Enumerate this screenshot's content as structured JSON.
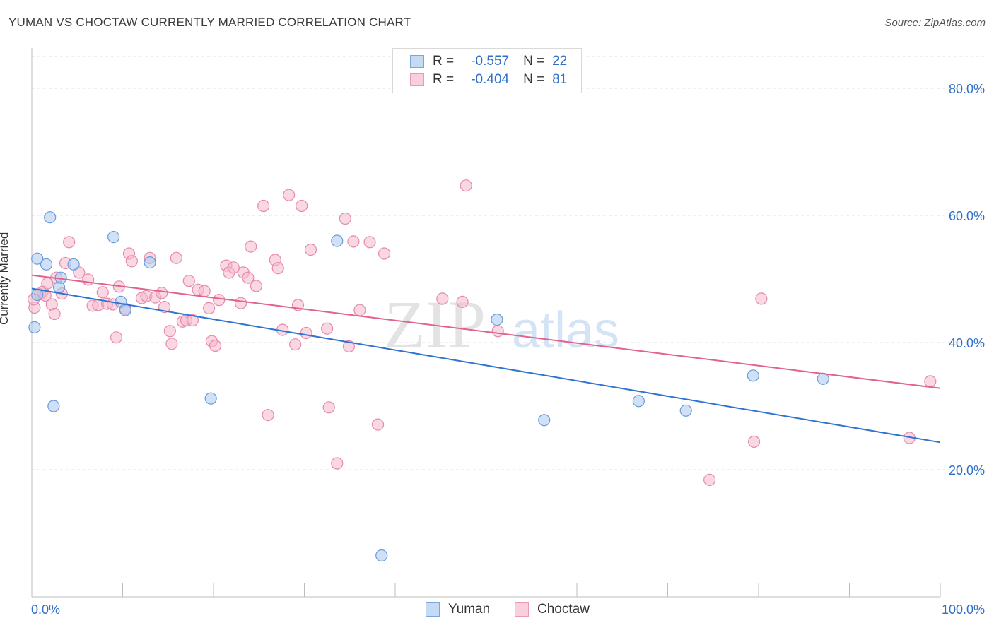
{
  "title": "YUMAN VS CHOCTAW CURRENTLY MARRIED CORRELATION CHART",
  "source": "Source: ZipAtlas.com",
  "watermark": {
    "zip": "ZIP",
    "atlas": "atlas"
  },
  "legend": {
    "rows": [
      {
        "r_label": "R =",
        "r_value": "-0.557",
        "n_label": "N =",
        "n_value": "22"
      },
      {
        "r_label": "R =",
        "r_value": "-0.404",
        "n_label": "N =",
        "n_value": "81"
      }
    ]
  },
  "bottom_legend": {
    "series1": "Yuman",
    "series2": "Choctaw"
  },
  "colors": {
    "yuman_fill": "#aac8f0",
    "yuman_stroke": "#6a9bd8",
    "yuman_line": "#2f74d0",
    "choctaw_fill": "#f6b8cc",
    "choctaw_stroke": "#e58aa8",
    "choctaw_line": "#e0628d",
    "axis_tick_text": "#3070c8",
    "grid": "#e2e2e2"
  },
  "chart_data": {
    "type": "scatter",
    "title": "YUMAN VS CHOCTAW CURRENTLY MARRIED CORRELATION CHART",
    "xlabel": "",
    "ylabel": "Currently Married",
    "xlim": [
      0,
      100
    ],
    "ylim": [
      0,
      85
    ],
    "x_tick_labels": [
      "0.0%",
      "100.0%"
    ],
    "y_ticks": [
      20,
      40,
      60,
      80
    ],
    "y_tick_labels": [
      "20.0%",
      "40.0%",
      "60.0%",
      "80.0%"
    ],
    "grid": true,
    "legend_position": "top-center",
    "series": [
      {
        "name": "Yuman",
        "trend": {
          "x": [
            0,
            100
          ],
          "y": [
            48.5,
            24.3
          ]
        },
        "points": [
          [
            0.3,
            42.4
          ],
          [
            0.6,
            47.5
          ],
          [
            0.6,
            53.2
          ],
          [
            1.6,
            52.3
          ],
          [
            2.0,
            59.7
          ],
          [
            2.4,
            30.0
          ],
          [
            3.0,
            48.7
          ],
          [
            3.2,
            50.2
          ],
          [
            4.6,
            52.3
          ],
          [
            9.0,
            56.6
          ],
          [
            9.8,
            46.4
          ],
          [
            10.3,
            45.1
          ],
          [
            13.0,
            52.6
          ],
          [
            19.7,
            31.2
          ],
          [
            33.6,
            56.0
          ],
          [
            38.5,
            6.5
          ],
          [
            51.2,
            43.6
          ],
          [
            56.4,
            27.8
          ],
          [
            66.8,
            30.8
          ],
          [
            72.0,
            29.3
          ],
          [
            79.4,
            34.8
          ],
          [
            87.1,
            34.3
          ]
        ]
      },
      {
        "name": "Choctaw",
        "trend": {
          "x": [
            0,
            100
          ],
          "y": [
            50.6,
            32.8
          ]
        },
        "points": [
          [
            0.3,
            45.5
          ],
          [
            0.9,
            47.6
          ],
          [
            1.2,
            48.0
          ],
          [
            1.7,
            49.3
          ],
          [
            2.2,
            46.0
          ],
          [
            2.5,
            44.5
          ],
          [
            2.7,
            50.2
          ],
          [
            3.3,
            47.7
          ],
          [
            3.7,
            52.5
          ],
          [
            4.1,
            55.8
          ],
          [
            5.2,
            51.0
          ],
          [
            6.2,
            49.9
          ],
          [
            6.7,
            45.8
          ],
          [
            7.3,
            45.9
          ],
          [
            7.8,
            47.9
          ],
          [
            8.3,
            46.1
          ],
          [
            8.9,
            46.0
          ],
          [
            9.3,
            40.8
          ],
          [
            9.6,
            48.8
          ],
          [
            10.3,
            45.3
          ],
          [
            10.7,
            54.0
          ],
          [
            11.0,
            52.8
          ],
          [
            12.1,
            47.0
          ],
          [
            12.6,
            47.3
          ],
          [
            13.0,
            53.3
          ],
          [
            13.6,
            47.1
          ],
          [
            14.3,
            47.8
          ],
          [
            14.6,
            45.6
          ],
          [
            15.2,
            41.8
          ],
          [
            15.4,
            39.8
          ],
          [
            15.9,
            53.3
          ],
          [
            16.6,
            43.3
          ],
          [
            17.0,
            43.5
          ],
          [
            17.3,
            49.7
          ],
          [
            17.7,
            43.5
          ],
          [
            18.3,
            48.3
          ],
          [
            19.0,
            48.1
          ],
          [
            19.5,
            45.4
          ],
          [
            19.8,
            40.2
          ],
          [
            20.2,
            39.5
          ],
          [
            20.6,
            46.7
          ],
          [
            21.4,
            52.1
          ],
          [
            21.7,
            51.0
          ],
          [
            22.2,
            51.8
          ],
          [
            23.0,
            46.2
          ],
          [
            23.3,
            51.0
          ],
          [
            23.8,
            50.2
          ],
          [
            24.1,
            55.1
          ],
          [
            24.7,
            48.9
          ],
          [
            25.5,
            61.5
          ],
          [
            26.0,
            28.6
          ],
          [
            26.8,
            53.0
          ],
          [
            27.1,
            51.7
          ],
          [
            27.6,
            42.0
          ],
          [
            28.3,
            63.2
          ],
          [
            29.0,
            39.7
          ],
          [
            29.3,
            45.9
          ],
          [
            29.7,
            61.5
          ],
          [
            30.2,
            41.5
          ],
          [
            30.7,
            54.6
          ],
          [
            32.5,
            42.2
          ],
          [
            32.7,
            29.8
          ],
          [
            33.6,
            21.0
          ],
          [
            34.5,
            59.5
          ],
          [
            34.9,
            39.4
          ],
          [
            35.4,
            55.9
          ],
          [
            36.1,
            45.1
          ],
          [
            37.2,
            55.8
          ],
          [
            38.1,
            27.1
          ],
          [
            38.8,
            54.0
          ],
          [
            45.2,
            46.9
          ],
          [
            47.4,
            46.4
          ],
          [
            47.8,
            64.7
          ],
          [
            51.3,
            41.8
          ],
          [
            74.6,
            18.4
          ],
          [
            79.5,
            24.4
          ],
          [
            80.3,
            46.9
          ],
          [
            96.6,
            25.0
          ],
          [
            98.9,
            33.9
          ],
          [
            0.2,
            46.8
          ],
          [
            1.5,
            47.4
          ]
        ]
      }
    ]
  }
}
